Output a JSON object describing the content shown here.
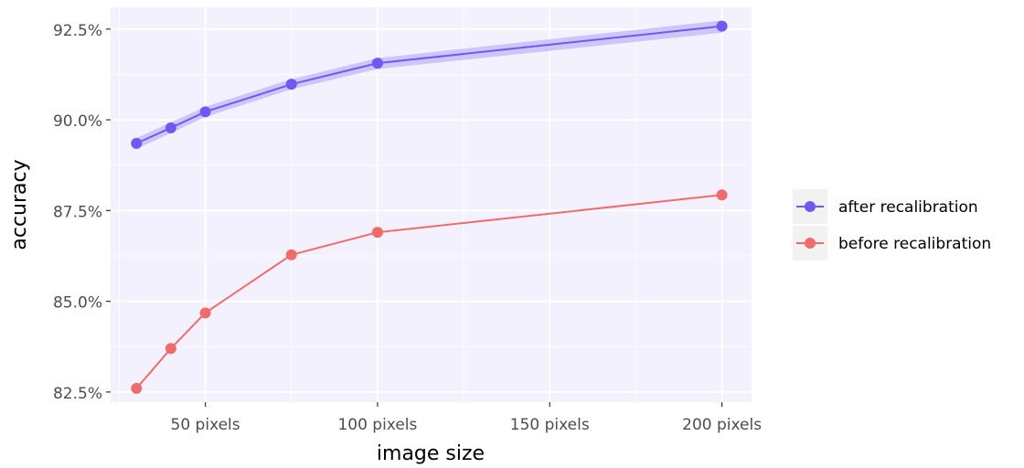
{
  "chart_data": {
    "type": "line",
    "title": "",
    "xlabel": "image size",
    "ylabel": "accuracy",
    "x_ticks": [
      {
        "value": 50,
        "label": "50 pixels"
      },
      {
        "value": 100,
        "label": "100 pixels"
      },
      {
        "value": 150,
        "label": "150 pixels"
      },
      {
        "value": 200,
        "label": "200 pixels"
      }
    ],
    "y_ticks": [
      {
        "value": 82.5,
        "label": "82.5%"
      },
      {
        "value": 85.0,
        "label": "85.0%"
      },
      {
        "value": 87.5,
        "label": "87.5%"
      },
      {
        "value": 90.0,
        "label": "90.0%"
      },
      {
        "value": 92.5,
        "label": "92.5%"
      }
    ],
    "xlim": [
      22.5,
      208.6
    ],
    "ylim": [
      82.22,
      93.1
    ],
    "grid": true,
    "legend_position": "right",
    "series": [
      {
        "name": "after recalibration",
        "color": "#7158F5",
        "band_color": "#C6BEFA",
        "x": [
          30,
          40,
          50,
          75,
          100,
          200
        ],
        "y": [
          89.35,
          89.78,
          90.22,
          90.98,
          91.56,
          92.58
        ],
        "lower": [
          89.2,
          89.63,
          90.08,
          90.84,
          91.4,
          92.4
        ],
        "upper": [
          89.5,
          89.93,
          90.36,
          91.12,
          91.7,
          92.74
        ]
      },
      {
        "name": "before recalibration",
        "color": "#F26B6B",
        "x": [
          30,
          40,
          50,
          75,
          100,
          200
        ],
        "y": [
          82.6,
          83.7,
          84.68,
          86.28,
          86.9,
          87.93
        ]
      }
    ]
  }
}
